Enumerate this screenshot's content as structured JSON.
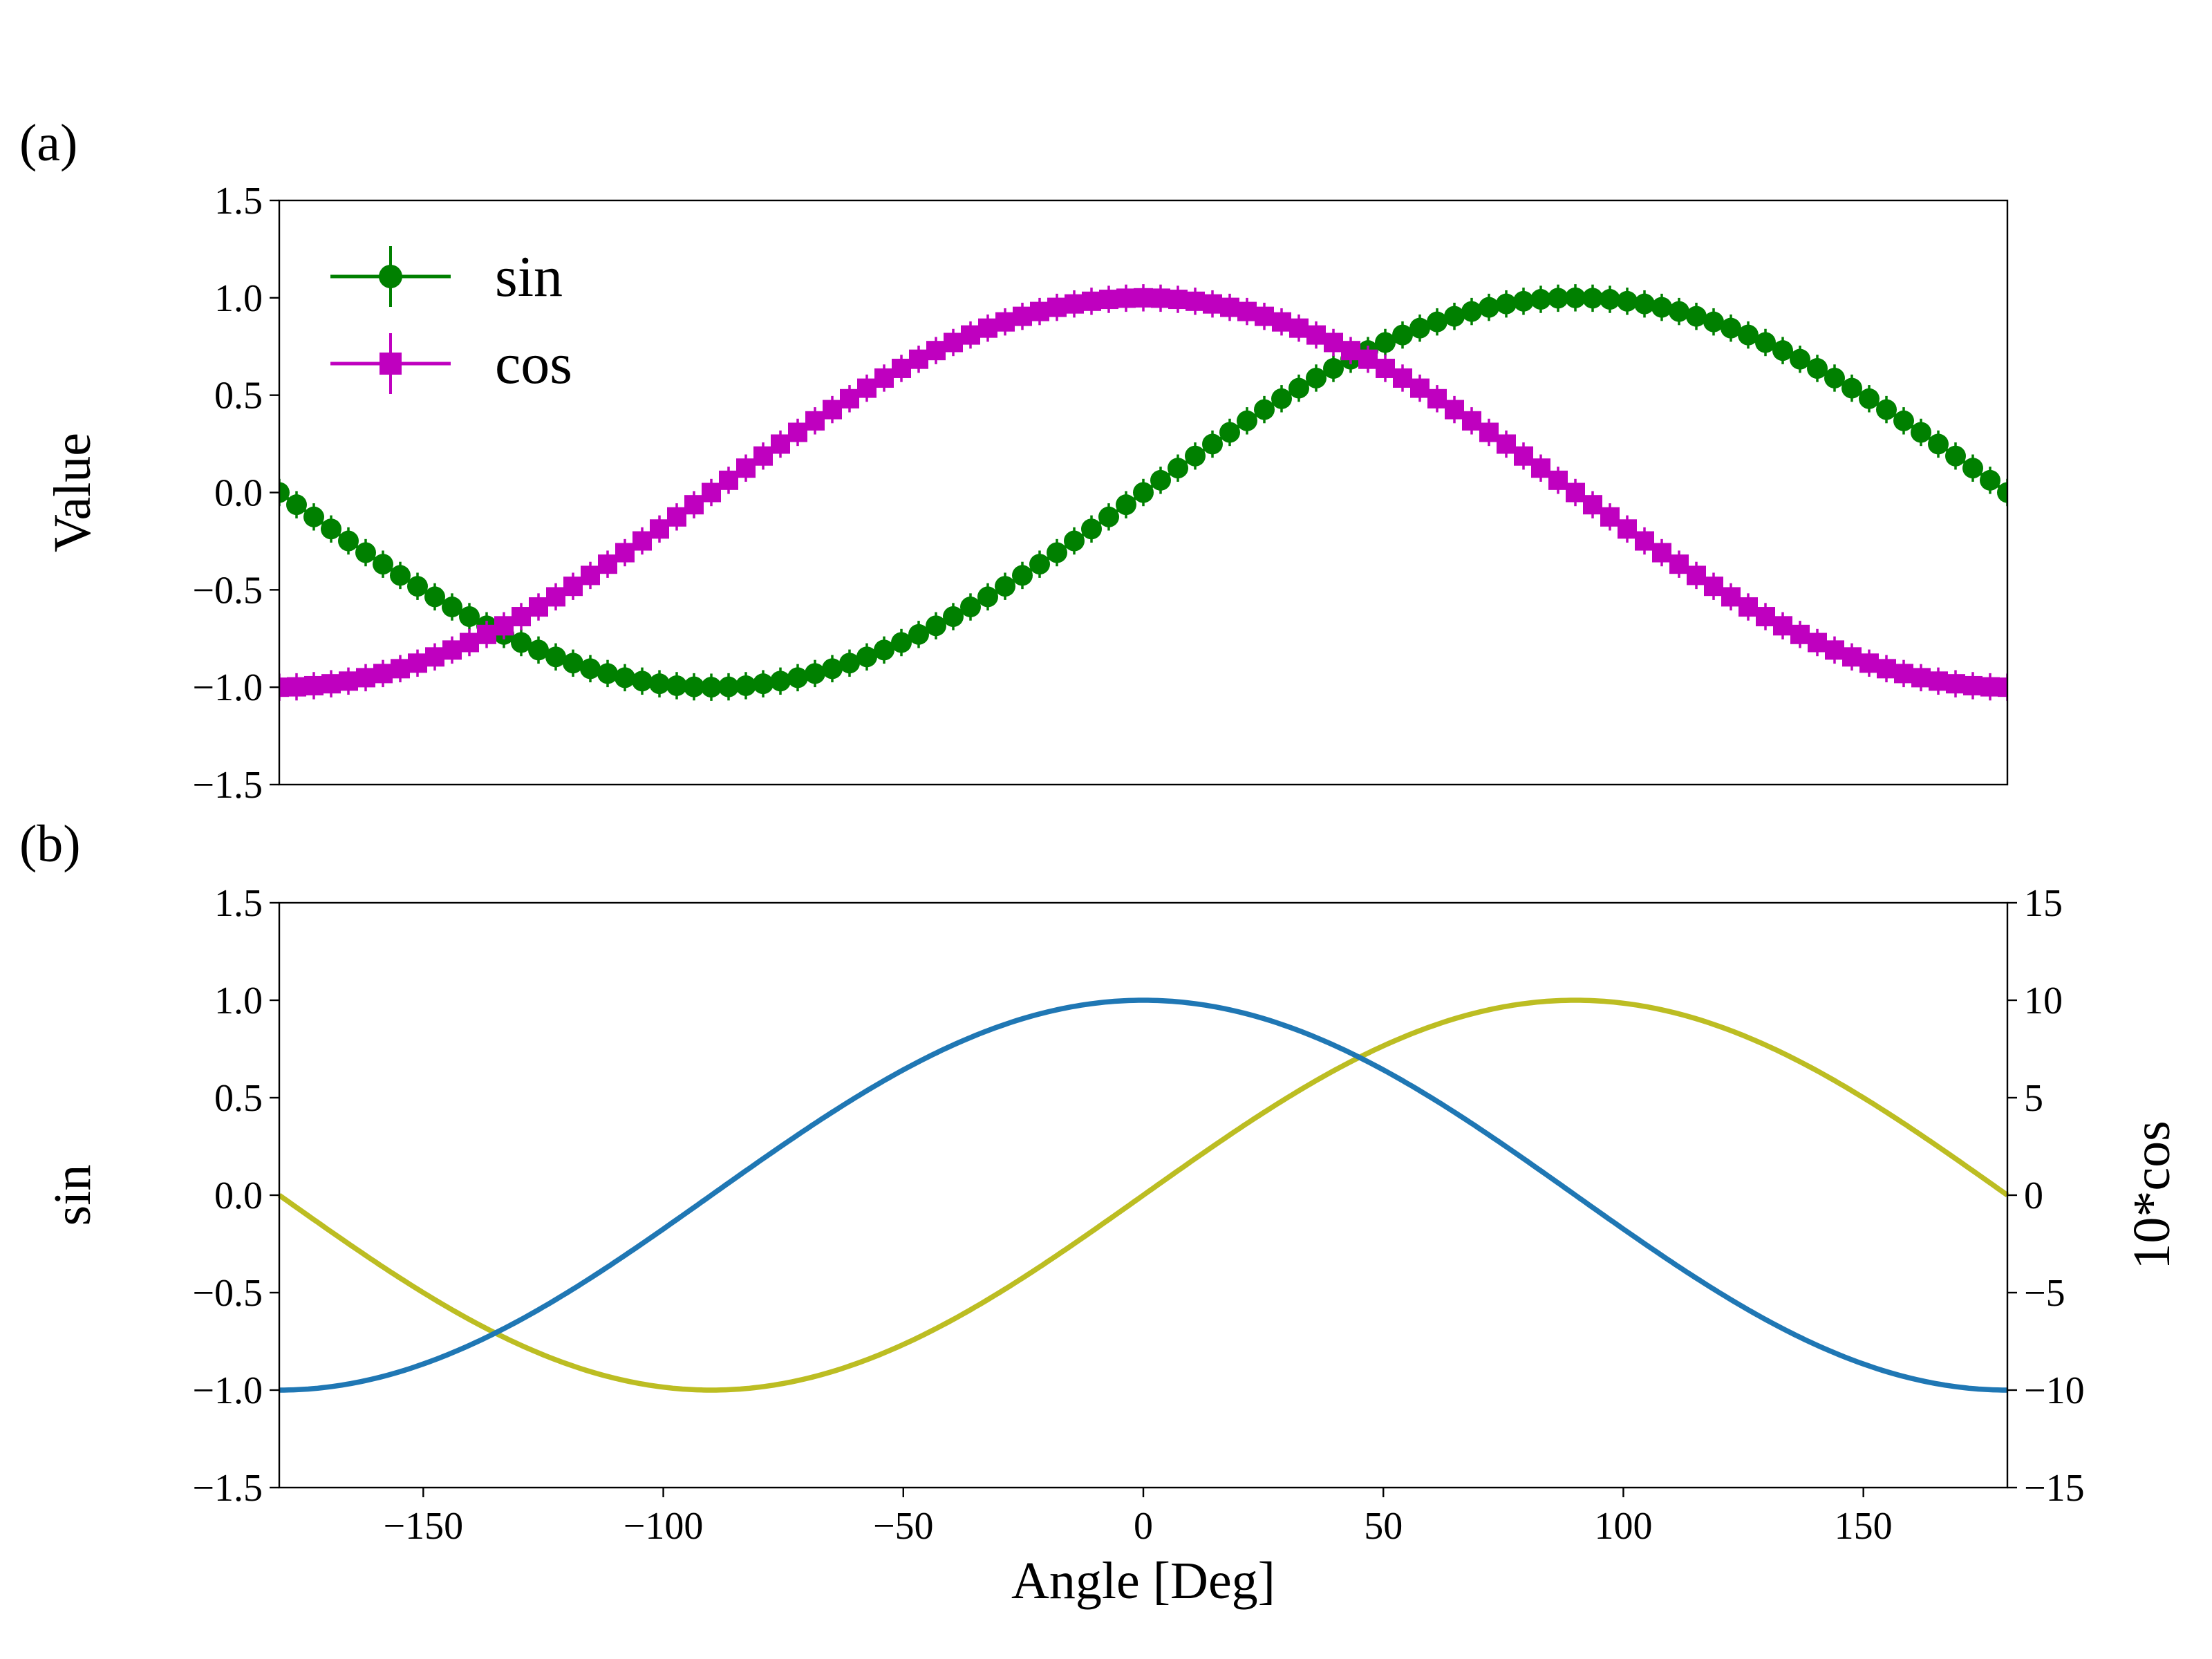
{
  "figure": {
    "panel_labels": [
      "(a)",
      "(b)"
    ]
  },
  "chart_data": [
    {
      "panel": "(a)",
      "type": "line",
      "errorbars": true,
      "x": {
        "start": -180,
        "end": 180,
        "step": 3.6
      },
      "xlim": [
        -180,
        180
      ],
      "ylim": [
        -1.5,
        1.5
      ],
      "yticks": [
        -1.5,
        -1.0,
        -0.5,
        0.0,
        0.5,
        1.0,
        1.5
      ],
      "ytick_labels": [
        "−1.5",
        "−1.0",
        "−0.5",
        "0.0",
        "0.5",
        "1.0",
        "1.5"
      ],
      "xlabel": "",
      "ylabel": "Value",
      "legend_position": "upper-left",
      "series": [
        {
          "name": "sin",
          "function": "sin(x)",
          "marker": "circle",
          "color": "#008000",
          "yerr": 0.07
        },
        {
          "name": "cos",
          "function": "cos(x)",
          "marker": "square",
          "color": "#bf00bf",
          "yerr": 0.07
        }
      ]
    },
    {
      "panel": "(b)",
      "type": "line",
      "x": {
        "start": -180,
        "end": 180,
        "step": 1
      },
      "xlim": [
        -180,
        180
      ],
      "xticks": [
        -150,
        -100,
        -50,
        0,
        50,
        100,
        150
      ],
      "xtick_labels": [
        "−150",
        "−100",
        "−50",
        "0",
        "50",
        "100",
        "150"
      ],
      "xlabel": "Angle [Deg]",
      "ylabel": "sin",
      "ylim": [
        -1.5,
        1.5
      ],
      "yticks": [
        -1.5,
        -1.0,
        -0.5,
        0.0,
        0.5,
        1.0,
        1.5
      ],
      "ytick_labels": [
        "−1.5",
        "−1.0",
        "−0.5",
        "0.0",
        "0.5",
        "1.0",
        "1.5"
      ],
      "y2label": "10*cos",
      "y2lim": [
        -15,
        15
      ],
      "y2ticks": [
        -15,
        -10,
        -5,
        0,
        5,
        10,
        15
      ],
      "y2tick_labels": [
        "−15",
        "−10",
        "−5",
        "0",
        "5",
        "10",
        "15"
      ],
      "series": [
        {
          "function": "sin(x)",
          "axis": "left",
          "color": "#bcbd22"
        },
        {
          "function": "10*cos(x)",
          "axis": "right",
          "color": "#1f77b4"
        }
      ]
    }
  ]
}
